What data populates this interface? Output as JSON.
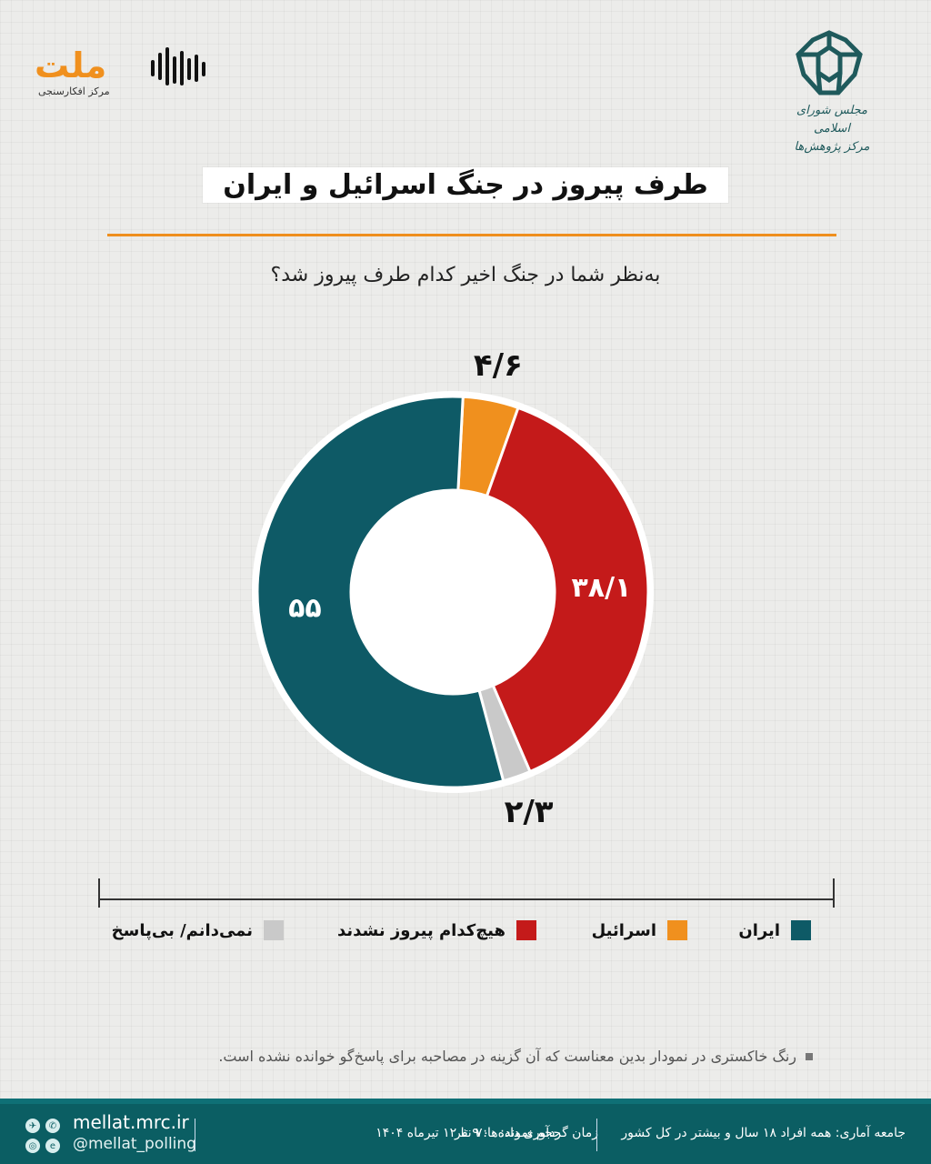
{
  "header": {
    "left_logo": {
      "word": "ملت",
      "subtitle": "مرکز افکارسنجی",
      "accent": "#f0901e"
    },
    "right_logo": {
      "caption_line1": "مجلس شورای اسلامی",
      "caption_line2": "مرکز پژوهش‌ها",
      "color": "#1f5a5c"
    }
  },
  "title": "طرف پیروز در جنگ اسرائیل و ایران",
  "question": "به‌نظر شما در جنگ اخیر کدام طرف پیروز شد؟",
  "chart_data": {
    "type": "pie",
    "variant": "donut",
    "slices": [
      {
        "label": "ایران",
        "value": 55,
        "value_label": "۵۵",
        "color": "#0e5a66"
      },
      {
        "label": "اسرائیل",
        "value": 4.6,
        "value_label": "۴/۶",
        "color": "#f0901e"
      },
      {
        "label": "هیچ‌کدام پیروز نشدند",
        "value": 38.1,
        "value_label": "۳۸/۱",
        "color": "#c41a1a"
      },
      {
        "label": "نمی‌دانم/ بی‌پاسخ",
        "value": 2.3,
        "value_label": "۲/۳",
        "color": "#c9c9c9"
      }
    ],
    "legend_position": "bottom"
  },
  "note": "رنگ خاکستری در نمودار بدین معناست که آن گزینه در مصاحبه برای پاسخ‌گو خوانده نشده است.",
  "footer": {
    "website": "mellat.mrc.ir",
    "handle": "@mellat_polling",
    "population": "جامعه آماری: همه افراد ۱۸ سال و بیشتر در کل کشور",
    "sample": "حجم نمونه: ۷۰۰ نفر",
    "dates": "زمان گردآوری داده‌ها: ۹ تا ۱۲ تیرماه ۱۴۰۴",
    "social_icons": [
      "telegram-icon",
      "whatsapp-icon",
      "instagram-icon",
      "eitaa-icon"
    ]
  }
}
